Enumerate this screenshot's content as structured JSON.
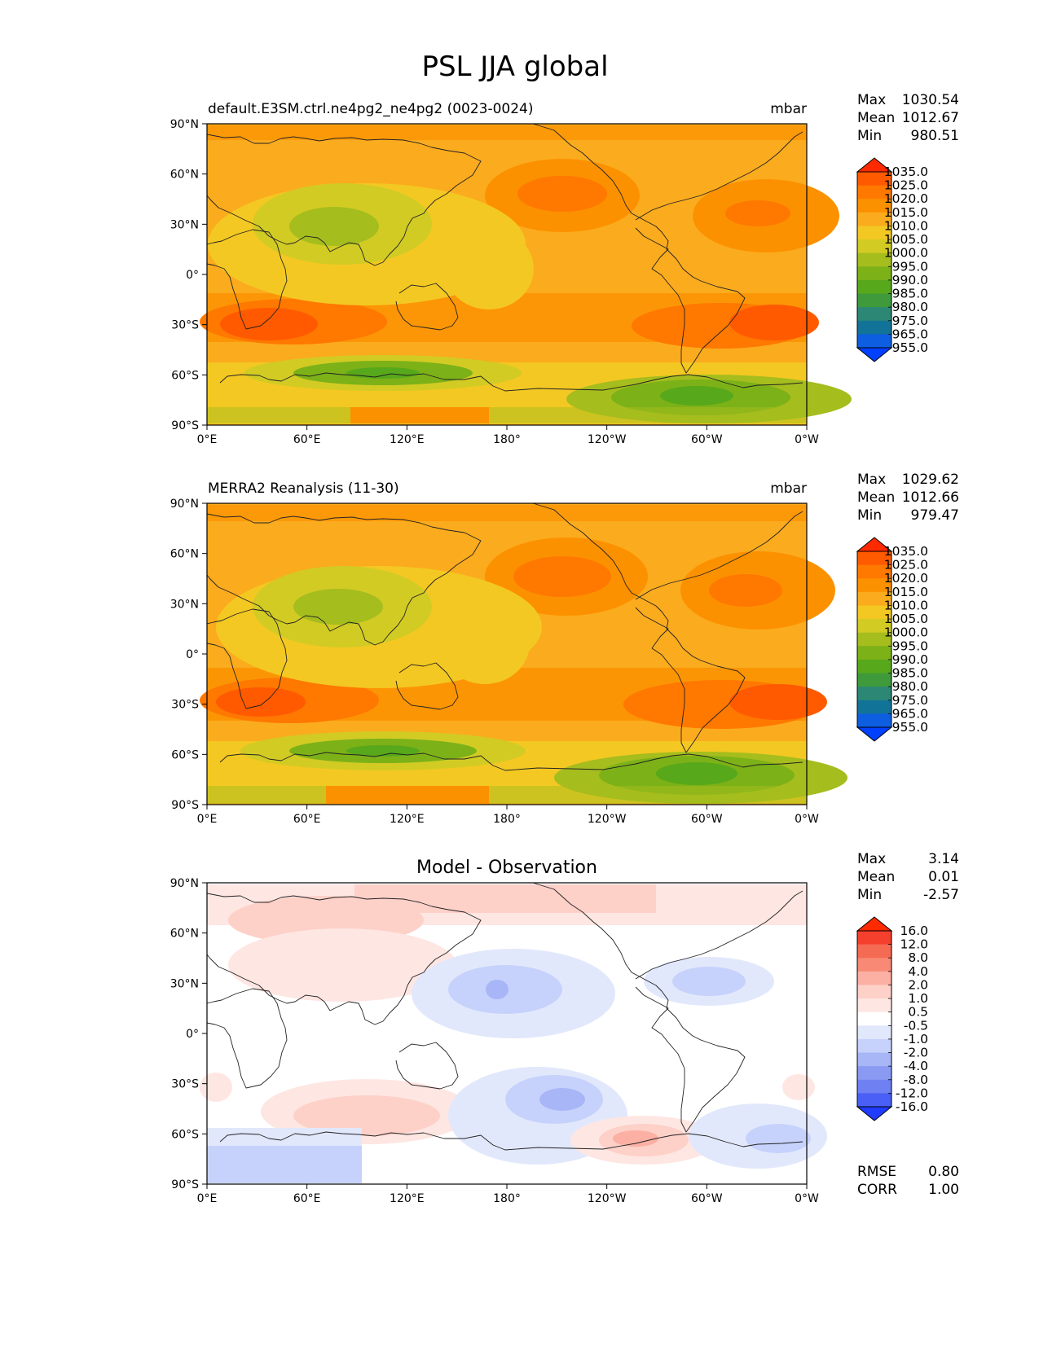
{
  "figure": {
    "title": "PSL JJA global"
  },
  "axes": {
    "lat_labels": [
      "90°N",
      "60°N",
      "30°N",
      "0°",
      "30°S",
      "60°S",
      "90°S"
    ],
    "lon_labels": [
      "0°E",
      "60°E",
      "120°E",
      "180°",
      "120°W",
      "60°W",
      "0°W"
    ]
  },
  "panels": [
    {
      "left_title": "default.E3SM.ctrl.ne4pg2_ne4pg2 (0023-0024)",
      "center_title": "",
      "units": "mbar",
      "stats": [
        {
          "label": "Max",
          "value": "1030.54"
        },
        {
          "label": "Mean",
          "value": "1012.67"
        },
        {
          "label": "Min",
          "value": "980.51"
        }
      ],
      "colorbar_labels": [
        "1035.0",
        "1025.0",
        "1020.0",
        "1015.0",
        "1010.0",
        "1005.0",
        "1000.0",
        "995.0",
        "990.0",
        "985.0",
        "980.0",
        "975.0",
        "965.0",
        "955.0"
      ],
      "colorbar_colors": [
        "#ff2a00",
        "#ff5a00",
        "#ff7800",
        "#fc9100",
        "#fbab1e",
        "#f3c822",
        "#d2cb24",
        "#a5bd1d",
        "#7cb118",
        "#57a81a",
        "#3e9a3b",
        "#2c8874",
        "#127398",
        "#0d5ee0",
        "#0040ff"
      ]
    },
    {
      "left_title": "MERRA2 Reanalysis (11-30)",
      "center_title": "",
      "units": "mbar",
      "stats": [
        {
          "label": "Max",
          "value": "1029.62"
        },
        {
          "label": "Mean",
          "value": "1012.66"
        },
        {
          "label": "Min",
          "value": "979.47"
        }
      ],
      "colorbar_labels": [
        "1035.0",
        "1025.0",
        "1020.0",
        "1015.0",
        "1010.0",
        "1005.0",
        "1000.0",
        "995.0",
        "990.0",
        "985.0",
        "980.0",
        "975.0",
        "965.0",
        "955.0"
      ],
      "colorbar_colors": [
        "#ff2a00",
        "#ff5a00",
        "#ff7800",
        "#fc9100",
        "#fbab1e",
        "#f3c822",
        "#d2cb24",
        "#a5bd1d",
        "#7cb118",
        "#57a81a",
        "#3e9a3b",
        "#2c8874",
        "#127398",
        "#0d5ee0",
        "#0040ff"
      ]
    },
    {
      "left_title": "",
      "center_title": "Model - Observation",
      "units": "",
      "stats": [
        {
          "label": "Max",
          "value": "3.14"
        },
        {
          "label": "Mean",
          "value": "0.01"
        },
        {
          "label": "Min",
          "value": "-2.57"
        }
      ],
      "colorbar_labels": [
        "16.0",
        "12.0",
        "8.0",
        "4.0",
        "2.0",
        "1.0",
        "0.5",
        "-0.5",
        "-1.0",
        "-2.0",
        "-4.0",
        "-8.0",
        "-12.0",
        "-16.0"
      ],
      "colorbar_colors": [
        "#ff2a00",
        "#f6402e",
        "#f56a53",
        "#f88a75",
        "#fbb0a3",
        "#fdd0c8",
        "#fee6e2",
        "#ffffff",
        "#e2e8fc",
        "#c6d2fb",
        "#a8b6f7",
        "#8a9af3",
        "#6f80f2",
        "#4a5ff5",
        "#1f3cff"
      ],
      "footer_stats": [
        {
          "label": "RMSE",
          "value": "0.80"
        },
        {
          "label": "CORR",
          "value": "1.00"
        }
      ]
    }
  ]
}
